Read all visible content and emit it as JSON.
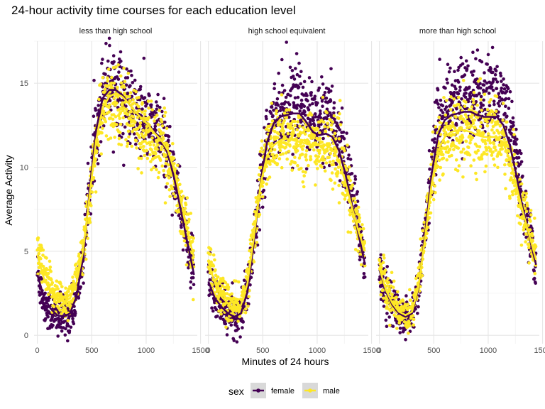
{
  "chart_data": {
    "type": "scatter",
    "title": "24-hour activity time courses for each education level",
    "xlabel": "Minutes of 24 hours",
    "ylabel": "Average Activity",
    "xlim": [
      -30,
      1470
    ],
    "ylim": [
      -0.5,
      17.5
    ],
    "x_ticks": [
      0,
      500,
      1000,
      1500
    ],
    "y_ticks": [
      0,
      5,
      10,
      15
    ],
    "grid": true,
    "legend": {
      "title": "sex",
      "position": "bottom",
      "entries": [
        "female",
        "male"
      ]
    },
    "colors": {
      "female": "#440154",
      "male": "#FDE725"
    },
    "overlay": "smooth",
    "panels": [
      {
        "label": "less than high school",
        "series": [
          {
            "name": "female",
            "x": [
              0,
              60,
              120,
              180,
              240,
              300,
              360,
              420,
              480,
              540,
              600,
              660,
              720,
              780,
              840,
              900,
              960,
              1020,
              1080,
              1140,
              1200,
              1260,
              1320,
              1380,
              1440
            ],
            "y": [
              3.8,
              2.0,
              1.4,
              1.0,
              1.0,
              1.2,
              2.2,
              4.5,
              8.5,
              12.3,
              14.5,
              15.2,
              15.0,
              14.2,
              13.6,
              13.2,
              12.9,
              12.6,
              12.2,
              11.8,
              11.0,
              9.5,
              7.5,
              5.5,
              3.5
            ],
            "smooth": [
              3.6,
              2.3,
              1.6,
              1.2,
              1.1,
              1.3,
              2.3,
              4.6,
              8.6,
              12.2,
              14.1,
              14.6,
              14.6,
              14.3,
              13.8,
              13.3,
              12.9,
              12.5,
              12.1,
              11.6,
              10.8,
              9.3,
              7.4,
              5.5,
              3.6
            ]
          },
          {
            "name": "male",
            "x": [
              0,
              60,
              120,
              180,
              240,
              300,
              360,
              420,
              480,
              540,
              600,
              660,
              720,
              780,
              840,
              900,
              960,
              1020,
              1080,
              1140,
              1200,
              1260,
              1320,
              1380,
              1440
            ],
            "y": [
              5.0,
              3.6,
              2.8,
              2.3,
              2.0,
              2.2,
              3.2,
              5.0,
              8.2,
              11.5,
              13.2,
              13.8,
              14.0,
              13.8,
              13.2,
              12.6,
              12.2,
              11.8,
              11.5,
              11.2,
              10.6,
              9.4,
              7.8,
              6.2,
              4.6
            ],
            "smooth": [
              4.8,
              3.4,
              2.6,
              2.2,
              2.0,
              2.2,
              3.1,
              5.0,
              8.3,
              11.6,
              13.5,
              14.2,
              14.4,
              14.2,
              13.8,
              13.3,
              12.9,
              12.5,
              12.0,
              11.6,
              11.0,
              9.8,
              8.0,
              6.2,
              4.6
            ]
          }
        ]
      },
      {
        "label": "high school equivalent",
        "series": [
          {
            "name": "female",
            "x": [
              0,
              60,
              120,
              180,
              240,
              300,
              360,
              420,
              480,
              540,
              600,
              660,
              720,
              780,
              840,
              900,
              960,
              1020,
              1080,
              1140,
              1200,
              1260,
              1320,
              1380,
              1440
            ],
            "y": [
              3.4,
              2.3,
              1.7,
              1.3,
              1.1,
              1.3,
              2.6,
              5.6,
              9.3,
              11.8,
              13.0,
              13.4,
              13.5,
              13.6,
              13.8,
              13.4,
              12.9,
              12.8,
              12.9,
              12.6,
              11.8,
              10.4,
              8.5,
              6.5,
              4.2
            ],
            "smooth": [
              3.2,
              2.2,
              1.7,
              1.3,
              1.1,
              1.3,
              2.6,
              5.6,
              9.1,
              11.5,
              12.6,
              13.0,
              13.1,
              13.2,
              13.2,
              12.7,
              12.1,
              11.9,
              12.0,
              11.8,
              11.0,
              9.6,
              7.8,
              6.0,
              4.2
            ]
          },
          {
            "name": "male",
            "x": [
              0,
              60,
              120,
              180,
              240,
              300,
              360,
              420,
              480,
              540,
              600,
              660,
              720,
              780,
              840,
              900,
              960,
              1020,
              1080,
              1140,
              1200,
              1260,
              1320,
              1380,
              1440
            ],
            "y": [
              4.6,
              3.2,
              2.4,
              1.9,
              1.6,
              1.8,
              3.2,
              6.0,
              9.3,
              10.8,
              11.4,
              11.7,
              11.8,
              11.8,
              11.6,
              11.5,
              11.4,
              11.4,
              11.4,
              11.2,
              10.5,
              9.2,
              7.6,
              6.2,
              5.0
            ],
            "smooth": [
              4.4,
              3.1,
              2.3,
              1.9,
              1.6,
              1.8,
              3.1,
              5.9,
              9.0,
              10.7,
              11.3,
              11.6,
              11.7,
              11.6,
              11.5,
              11.4,
              11.3,
              11.3,
              11.3,
              11.1,
              10.4,
              9.1,
              7.6,
              6.2,
              5.0
            ]
          }
        ]
      },
      {
        "label": "more than high school",
        "series": [
          {
            "name": "female",
            "x": [
              0,
              60,
              120,
              180,
              240,
              300,
              360,
              420,
              480,
              540,
              600,
              660,
              720,
              780,
              840,
              900,
              960,
              1020,
              1080,
              1140,
              1200,
              1260,
              1320,
              1380,
              1440
            ],
            "y": [
              3.9,
              2.6,
              1.8,
              1.3,
              1.1,
              1.3,
              2.8,
              6.2,
              10.0,
              12.5,
              13.4,
              13.8,
              14.0,
              14.2,
              14.3,
              14.2,
              14.1,
              14.2,
              14.3,
              13.8,
              12.6,
              10.6,
              8.2,
              6.0,
              4.0
            ],
            "smooth": [
              3.9,
              2.6,
              1.8,
              1.3,
              1.1,
              1.3,
              2.8,
              6.0,
              9.6,
              11.9,
              12.8,
              13.1,
              13.2,
              13.3,
              13.3,
              13.1,
              13.0,
              13.0,
              13.0,
              12.5,
              11.3,
              9.5,
              7.5,
              5.8,
              4.2
            ]
          },
          {
            "name": "male",
            "x": [
              0,
              60,
              120,
              180,
              240,
              300,
              360,
              420,
              480,
              540,
              600,
              660,
              720,
              780,
              840,
              900,
              960,
              1020,
              1080,
              1140,
              1200,
              1260,
              1320,
              1380,
              1440
            ],
            "y": [
              4.2,
              2.8,
              2.0,
              1.5,
              1.3,
              1.5,
              3.0,
              6.0,
              9.3,
              11.2,
              11.9,
              12.2,
              12.3,
              12.3,
              12.2,
              12.0,
              11.9,
              11.9,
              11.9,
              11.5,
              10.5,
              9.0,
              7.4,
              6.0,
              4.6
            ],
            "smooth": [
              4.0,
              2.7,
              1.9,
              1.4,
              1.2,
              1.4,
              2.9,
              5.8,
              9.0,
              11.0,
              11.8,
              12.1,
              12.2,
              12.2,
              12.1,
              11.9,
              11.8,
              11.8,
              11.8,
              11.4,
              10.4,
              8.9,
              7.3,
              5.9,
              4.5
            ]
          }
        ]
      }
    ]
  }
}
